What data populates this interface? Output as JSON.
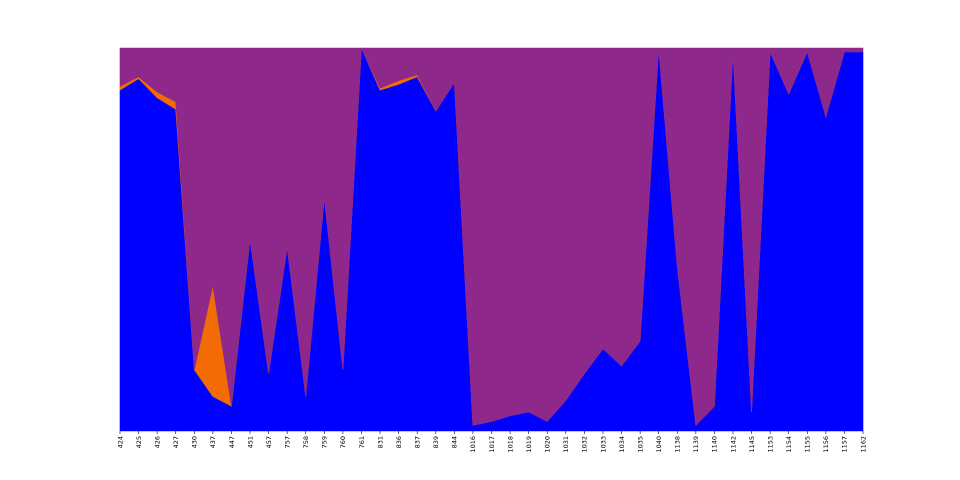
{
  "chart_data": {
    "type": "area",
    "stacked": true,
    "normalized": true,
    "categories": [
      "424",
      "425",
      "426",
      "427",
      "430",
      "437",
      "447",
      "451",
      "457",
      "757",
      "758",
      "759",
      "760",
      "761",
      "831",
      "836",
      "837",
      "839",
      "844",
      "1016",
      "1017",
      "1018",
      "1019",
      "1020",
      "1031",
      "1032",
      "1033",
      "1034",
      "1035",
      "1040",
      "1138",
      "1139",
      "1140",
      "1142",
      "1145",
      "1153",
      "1154",
      "1155",
      "1156",
      "1157",
      "1162"
    ],
    "ylim": [
      0,
      1
    ],
    "axes_visible": false,
    "grid": false,
    "series": [
      {
        "color": "#0000ff",
        "values": [
          0.89,
          0.92,
          0.87,
          0.84,
          0.16,
          0.09,
          0.065,
          0.5,
          0.15,
          0.48,
          0.09,
          0.61,
          0.16,
          1.0,
          0.89,
          0.905,
          0.925,
          0.835,
          0.91,
          0.015,
          0.025,
          0.04,
          0.05,
          0.025,
          0.08,
          0.15,
          0.215,
          0.17,
          0.235,
          1.0,
          0.43,
          0.015,
          0.065,
          0.99,
          0.05,
          0.99,
          0.88,
          0.99,
          0.82,
          0.99,
          0.99
        ]
      },
      {
        "color": "#f26b05",
        "values": [
          0.01,
          0.005,
          0.015,
          0.02,
          0.0,
          0.29,
          0.0,
          0.0,
          0.0,
          0.0,
          0.0,
          0.0,
          0.0,
          0.0,
          0.005,
          0.01,
          0.005,
          0.0,
          0.0,
          0.0,
          0.0,
          0.0,
          0.0,
          0.0,
          0.0,
          0.0,
          0.0,
          0.0,
          0.0,
          0.0,
          0.0,
          0.0,
          0.0,
          0.0,
          0.0,
          0.0,
          0.0,
          0.0,
          0.0,
          0.0,
          0.0
        ]
      },
      {
        "color": "#8f288b",
        "values": [
          0.1,
          0.075,
          0.115,
          0.14,
          0.84,
          0.62,
          0.935,
          0.5,
          0.85,
          0.52,
          0.91,
          0.39,
          0.84,
          0.0,
          0.105,
          0.085,
          0.07,
          0.165,
          0.09,
          0.985,
          0.975,
          0.96,
          0.95,
          0.975,
          0.92,
          0.85,
          0.785,
          0.83,
          0.765,
          0.0,
          0.57,
          0.985,
          0.935,
          0.01,
          0.95,
          0.01,
          0.12,
          0.01,
          0.18,
          0.01,
          0.01
        ]
      }
    ]
  }
}
